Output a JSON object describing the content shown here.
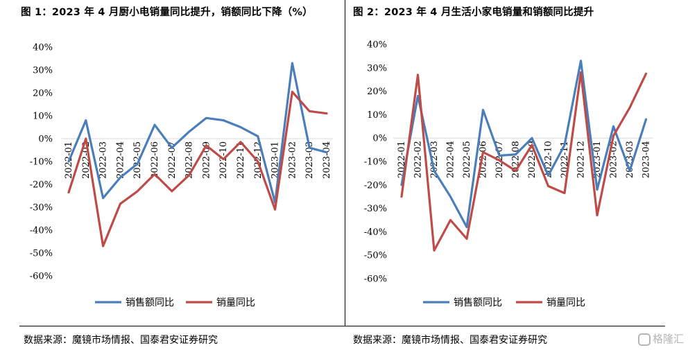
{
  "charts_meta": {
    "left": {
      "title": "图 1：2023 年 4 月厨小电销量同比提升，销额同比下降（%）",
      "source": "数据来源：魔镜市场情报、国泰君安证券研究"
    },
    "right": {
      "title": "图 2：2023 年 4 月生活小家电销量和销额同比提升",
      "source": "数据来源：魔镜市场情报、国泰君安证券研究"
    }
  },
  "watermark": "格隆汇",
  "colors": {
    "sales_amount": "#4a7ebb",
    "sales_volume": "#be4b48"
  },
  "chart_data": [
    {
      "type": "line",
      "title": "图 1：2023 年 4 月厨小电销量同比提升，销额同比下降（%）",
      "categories": [
        "2022-01",
        "2022-02",
        "2022-03",
        "2022-04",
        "2022-05",
        "2022-06",
        "2022-07",
        "2022-08",
        "2022-09",
        "2022-10",
        "2022-11",
        "2022-12",
        "2023-01",
        "2023-02",
        "2023-03",
        "2023-04"
      ],
      "y_ticks": [
        "40%",
        "30%",
        "20%",
        "10%",
        "0%",
        "-10%",
        "-20%",
        "-30%",
        "-40%",
        "-50%",
        "-60%"
      ],
      "ylim": [
        -60,
        40
      ],
      "series": [
        {
          "name": "销售额同比",
          "color": "#4a7ebb",
          "values": [
            -10,
            8,
            -26,
            -17,
            -11,
            6,
            -4,
            3,
            9,
            8,
            5,
            1,
            -28,
            33,
            -4,
            -6
          ]
        },
        {
          "name": "销量同比",
          "color": "#be4b48",
          "values": [
            -23.5,
            0,
            -47,
            -28.5,
            -23,
            -15.5,
            -23,
            -16,
            -3,
            -9,
            -1.5,
            -10,
            -31,
            20.5,
            12,
            11
          ]
        }
      ],
      "legend": "bottom"
    },
    {
      "type": "line",
      "title": "图 2：2023 年 4 月生活小家电销量和销额同比提升",
      "categories": [
        "2022-01",
        "2022-02",
        "2022-03",
        "2022-04",
        "2022-05",
        "2022-06",
        "2022-07",
        "2022-08",
        "2022-09",
        "2022-10",
        "2022-11",
        "2022-12",
        "2023-01",
        "2023-02",
        "2023-03",
        "2023-04"
      ],
      "y_ticks": [
        "40%",
        "30%",
        "20%",
        "10%",
        "0%",
        "-10%",
        "-20%",
        "-30%",
        "-40%",
        "-50%",
        "-60%"
      ],
      "ylim": [
        -60,
        40
      ],
      "series": [
        {
          "name": "销售额同比",
          "color": "#4a7ebb",
          "values": [
            -20,
            18,
            -14,
            -25,
            -38,
            12,
            -7.5,
            -7,
            0,
            -16,
            -3,
            33,
            -22,
            5,
            -14,
            8
          ]
        },
        {
          "name": "销量同比",
          "color": "#be4b48",
          "values": [
            -25,
            27,
            -48,
            -35,
            -43,
            -6,
            -9.5,
            -14,
            -3,
            -20.5,
            -23.5,
            28,
            -33,
            1,
            13,
            27.5
          ]
        }
      ],
      "legend": "bottom"
    }
  ]
}
